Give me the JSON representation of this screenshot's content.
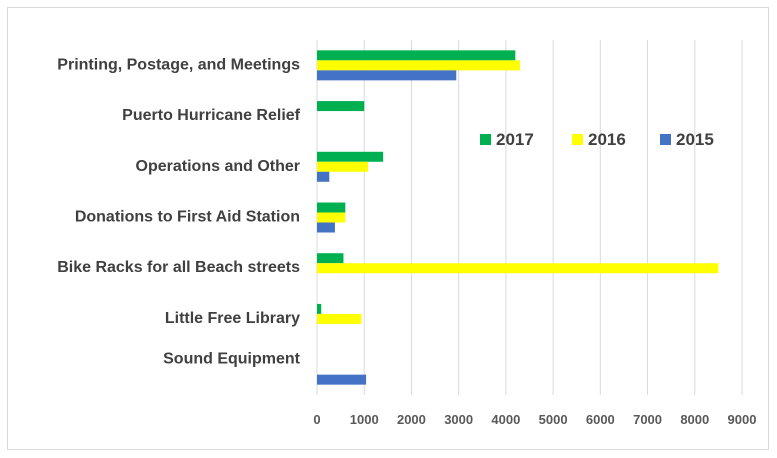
{
  "chart_data": {
    "type": "bar",
    "orientation": "horizontal",
    "categories": [
      "Printing, Postage, and Meetings",
      "Puerto Hurricane Relief",
      "Operations and Other",
      "Donations to First Aid Station",
      "Bike Racks for all Beach streets",
      "Little Free Library",
      "Sound Equipment"
    ],
    "series": [
      {
        "name": "2017",
        "color": "#00b050",
        "values": [
          4200,
          1000,
          1400,
          600,
          560,
          90,
          0
        ]
      },
      {
        "name": "2016",
        "color": "#ffff00",
        "values": [
          4300,
          0,
          1080,
          600,
          8500,
          940,
          0
        ]
      },
      {
        "name": "2015",
        "color": "#4472c4",
        "values": [
          2950,
          0,
          260,
          380,
          0,
          0,
          1040
        ]
      }
    ],
    "xlim": [
      0,
      9000
    ],
    "xticks": [
      0,
      1000,
      2000,
      3000,
      4000,
      5000,
      6000,
      7000,
      8000,
      9000
    ],
    "grid": true,
    "legend_position": "inside-right"
  }
}
